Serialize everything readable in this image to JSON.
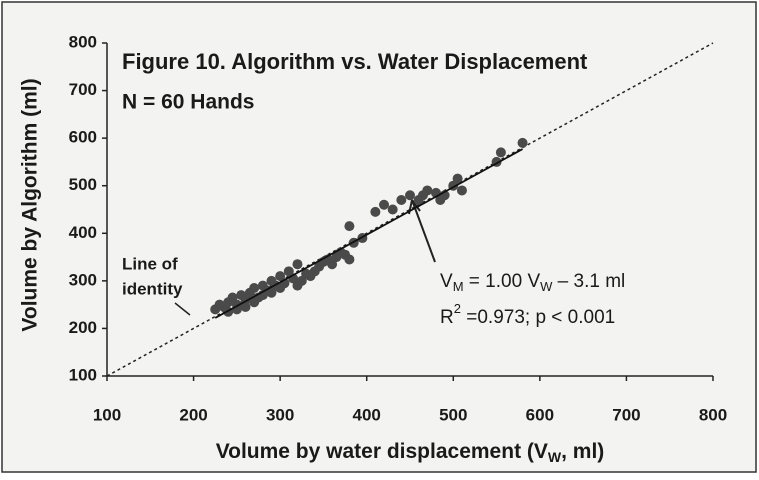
{
  "chart_data": {
    "type": "scatter",
    "title": "Figure 10. Algorithm vs. Water Displacement",
    "subtitle": "N = 60 Hands",
    "xlabel": [
      "Volume by water displacement (V",
      "W",
      ", ml)"
    ],
    "ylabel": "Volume by Algorithm (ml)",
    "annotations": {
      "identity": [
        "Line of",
        "identity"
      ],
      "equation": [
        "V",
        "M",
        " = 1.00 V",
        "W",
        " – 3.1 ml"
      ],
      "stats": [
        "R",
        "2",
        " =0.973; p < 0.001"
      ]
    },
    "xlim": [
      100,
      800
    ],
    "ylim": [
      100,
      800
    ],
    "xticks": [
      100,
      200,
      300,
      400,
      500,
      600,
      700,
      800
    ],
    "yticks": [
      100,
      200,
      300,
      400,
      500,
      600,
      700,
      800
    ],
    "color": "#4a4a4a",
    "fit_line": {
      "x": [
        225,
        580
      ],
      "y": [
        222,
        577
      ]
    },
    "x": [
      225,
      230,
      235,
      240,
      240,
      245,
      250,
      250,
      255,
      260,
      260,
      265,
      270,
      270,
      275,
      280,
      280,
      285,
      290,
      290,
      295,
      300,
      300,
      305,
      310,
      315,
      320,
      320,
      325,
      330,
      335,
      340,
      345,
      350,
      355,
      360,
      365,
      370,
      375,
      380,
      380,
      385,
      395,
      410,
      420,
      430,
      440,
      450,
      460,
      465,
      470,
      480,
      485,
      490,
      500,
      505,
      510,
      550,
      555,
      580
    ],
    "y": [
      240,
      250,
      245,
      255,
      235,
      265,
      250,
      240,
      270,
      260,
      245,
      275,
      255,
      285,
      265,
      290,
      270,
      280,
      300,
      275,
      290,
      285,
      310,
      295,
      320,
      305,
      290,
      335,
      300,
      315,
      310,
      320,
      330,
      340,
      345,
      335,
      350,
      360,
      355,
      345,
      415,
      380,
      390,
      445,
      460,
      450,
      470,
      480,
      470,
      480,
      490,
      485,
      470,
      480,
      500,
      515,
      490,
      550,
      570,
      590
    ]
  }
}
